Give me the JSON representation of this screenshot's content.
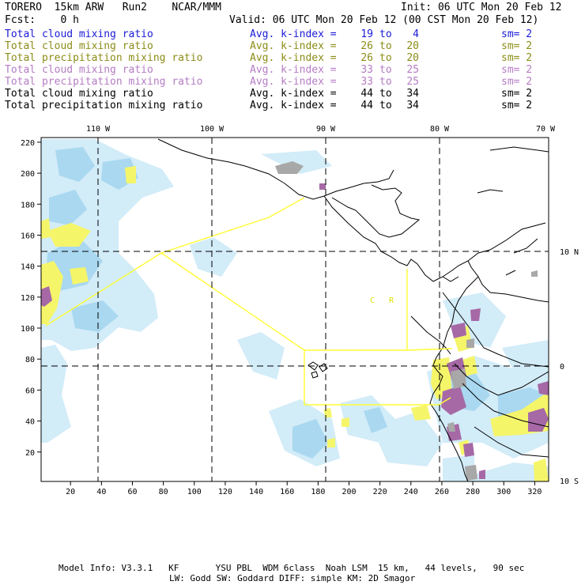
{
  "header": {
    "model": "TORERO  15km ARW   Run2    NCAR/MMM",
    "init": "Init: 06 UTC Mon 20 Feb 12",
    "fcst": "Fcst:    0 h",
    "valid": "Valid: 06 UTC Mon 20 Feb 12 (00 CST Mon 20 Feb 12)"
  },
  "fields": [
    {
      "label": "Total cloud mixing ratio",
      "avg": "Avg. k-index =",
      "from": "19",
      "to": "to",
      "end": "4",
      "sm": "sm= 2",
      "color": "#1a1ad6"
    },
    {
      "label": "Total cloud mixing ratio",
      "avg": "Avg. k-index =",
      "from": "26",
      "to": "to",
      "end": "20",
      "sm": "sm= 2",
      "color": "#8c8c18"
    },
    {
      "label": "Total precipitation mixing ratio",
      "avg": "Avg. k-index =",
      "from": "26",
      "to": "to",
      "end": "20",
      "sm": "sm= 2",
      "color": "#8c8c18"
    },
    {
      "label": "Total cloud mixing ratio",
      "avg": "Avg. k-index =",
      "from": "33",
      "to": "to",
      "end": "25",
      "sm": "sm= 2",
      "color": "#b57cc4"
    },
    {
      "label": "Total precipitation mixing ratio",
      "avg": "Avg. k-index =",
      "from": "33",
      "to": "to",
      "end": "25",
      "sm": "sm= 2",
      "color": "#b57cc4"
    },
    {
      "label": "Total cloud mixing ratio",
      "avg": "Avg. k-index =",
      "from": "44",
      "to": "to",
      "end": "34",
      "sm": "sm= 2",
      "color": "#000000"
    },
    {
      "label": "Total precipitation mixing ratio",
      "avg": "Avg. k-index =",
      "from": "44",
      "to": "to",
      "end": "34",
      "sm": "sm= 2",
      "color": "#000000"
    }
  ],
  "map": {
    "lon_labels": [
      "110 W",
      "100 W",
      "90 W",
      "80 W",
      "70 W"
    ],
    "lat_labels": [
      "10 N",
      "0",
      "10 S"
    ],
    "x_ticks": [
      "20",
      "40",
      "60",
      "80",
      "100",
      "120",
      "140",
      "160",
      "180",
      "200",
      "220",
      "240",
      "260",
      "280",
      "300",
      "320"
    ],
    "y_ticks": [
      "220",
      "200",
      "180",
      "160",
      "140",
      "120",
      "100",
      "80",
      "60",
      "40",
      "20"
    ],
    "region_labels": [
      "C",
      "R"
    ],
    "colors": {
      "cloud_light": "#d2ecf8",
      "cloud_mid": "#a9d8f0",
      "precip": "#f5f56a",
      "heavy": "#a669a6",
      "gray": "#a8a8a8",
      "boundary": "#ffff33",
      "coast": "#000000"
    }
  },
  "footer": {
    "line1": "Model Info: V3.3.1   KF       YSU PBL  WDM 6class  Noah LSM  15 km,   44 levels,   90 sec",
    "line2": "LW: Godd SW: Goddard DIFF: simple KM: 2D Smagor"
  }
}
